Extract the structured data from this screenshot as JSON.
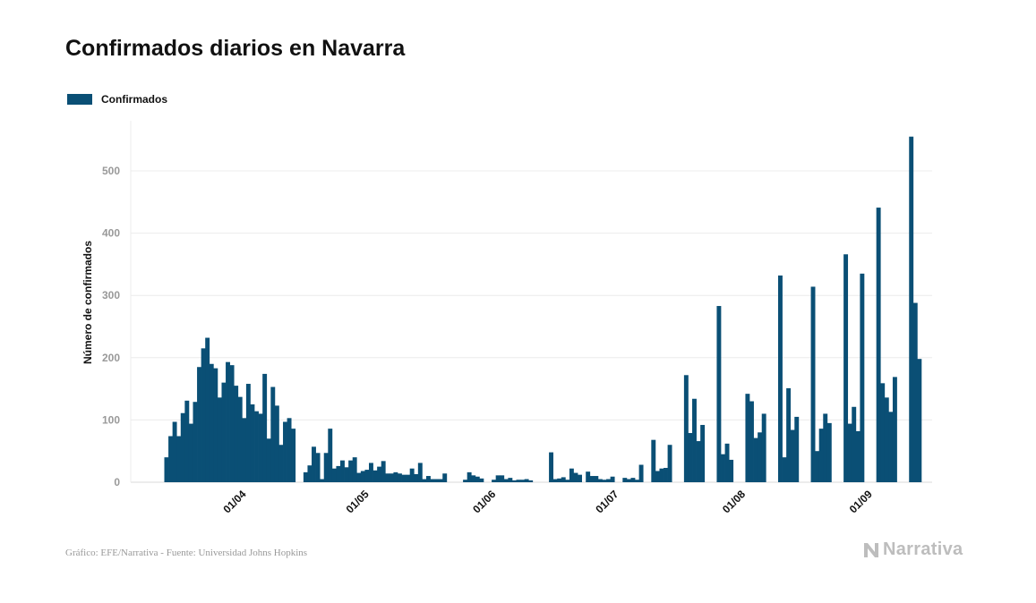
{
  "chart_data": {
    "type": "bar",
    "title": "Confirmados diarios en Navarra",
    "ylabel": "Número de confirmados",
    "xlabel": "",
    "ylim": [
      0,
      580
    ],
    "yticks": [
      0,
      100,
      200,
      300,
      400,
      500
    ],
    "x_start_date": "2020-03-15",
    "x_end_date": "2020-09-09",
    "x_tick_labels": [
      {
        "date": "2020-04-01",
        "label": "01/04"
      },
      {
        "date": "2020-05-01",
        "label": "01/05"
      },
      {
        "date": "2020-06-01",
        "label": "01/06"
      },
      {
        "date": "2020-07-01",
        "label": "01/07"
      },
      {
        "date": "2020-08-01",
        "label": "01/08"
      },
      {
        "date": "2020-09-01",
        "label": "01/09"
      }
    ],
    "legend_position": "top-left",
    "grid": true,
    "series": [
      {
        "name": "Confirmados",
        "color": "#0a4f75",
        "values": [
          40,
          74,
          97,
          74,
          111,
          131,
          94,
          129,
          185,
          215,
          232,
          190,
          183,
          136,
          160,
          193,
          188,
          155,
          137,
          103,
          158,
          125,
          114,
          110,
          174,
          70,
          153,
          123,
          60,
          97,
          103,
          86,
          0,
          0,
          16,
          27,
          57,
          47,
          5,
          47,
          86,
          22,
          26,
          35,
          24,
          35,
          40,
          15,
          18,
          20,
          31,
          19,
          25,
          34,
          14,
          14,
          16,
          14,
          12,
          12,
          22,
          13,
          31,
          5,
          10,
          5,
          5,
          5,
          14,
          0,
          0,
          0,
          0,
          4,
          16,
          11,
          9,
          6,
          0,
          0,
          4,
          11,
          11,
          5,
          7,
          3,
          4,
          4,
          5,
          3,
          0,
          0,
          0,
          0,
          48,
          5,
          6,
          8,
          4,
          22,
          15,
          12,
          0,
          17,
          10,
          10,
          5,
          4,
          5,
          9,
          0,
          0,
          7,
          5,
          7,
          4,
          28,
          0,
          0,
          68,
          18,
          22,
          23,
          60,
          0,
          0,
          0,
          172,
          79,
          134,
          66,
          92,
          0,
          0,
          0,
          283,
          45,
          62,
          36,
          0,
          0,
          0,
          142,
          130,
          71,
          80,
          110,
          0,
          0,
          0,
          332,
          40,
          151,
          84,
          105,
          0,
          0,
          0,
          314,
          50,
          86,
          110,
          95,
          0,
          0,
          0,
          366,
          94,
          121,
          82,
          335,
          0,
          0,
          0,
          441,
          159,
          136,
          113,
          169,
          0,
          0,
          0,
          555,
          288,
          198
        ]
      }
    ],
    "source": "Gráfico: EFE/Narrativa - Fuente: Universidad Johns Hopkins",
    "brand": "Narrativa"
  }
}
